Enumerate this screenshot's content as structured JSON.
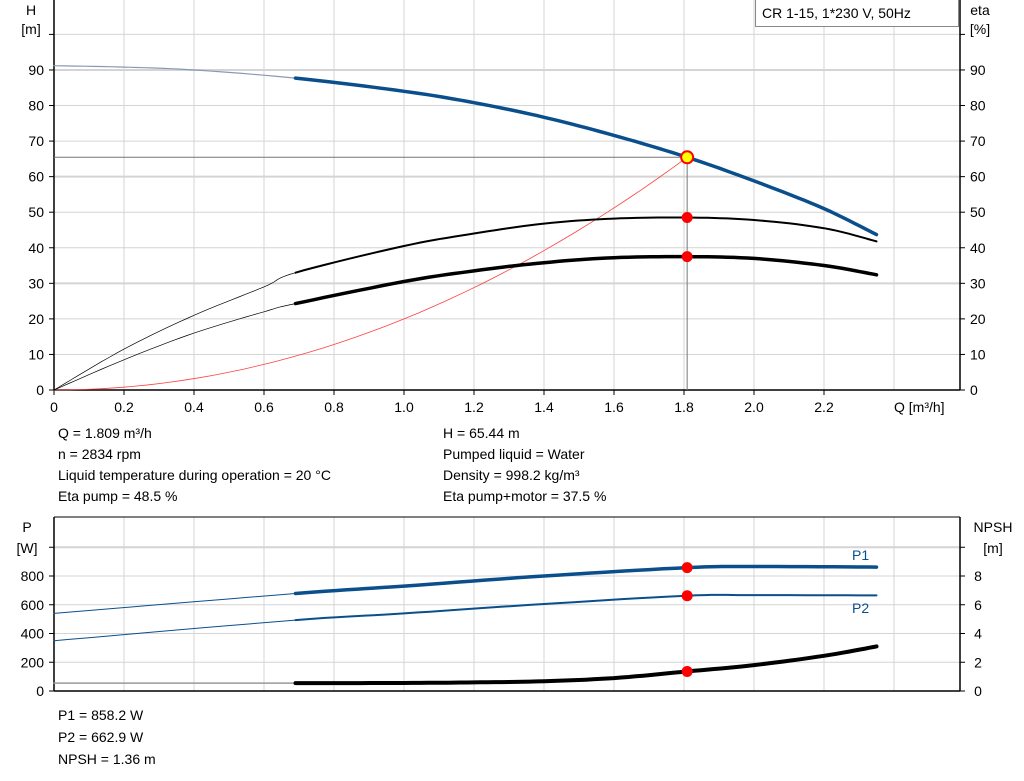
{
  "chart_data": [
    {
      "type": "line",
      "title": "CR 1-15, 1*230 V, 50Hz",
      "xlabel": "Q [m³/h]",
      "ylabel": [
        "H",
        "[m]"
      ],
      "y2label": [
        "eta",
        "[%]"
      ],
      "xlim": [
        0,
        2.6
      ],
      "ylim": [
        0,
        110
      ],
      "y2lim": [
        0,
        110
      ],
      "xticks": [
        "0",
        "0.2",
        "0.4",
        "0.6",
        "0.8",
        "1.0",
        "1.2",
        "1.4",
        "1.6",
        "1.8",
        "2.0",
        "2.2"
      ],
      "yticks": [
        "0",
        "10",
        "20",
        "30",
        "40",
        "50",
        "60",
        "70",
        "80",
        "90"
      ],
      "grid": true,
      "duty_range_start_q": 0.69,
      "operating_point": {
        "q": 1.809,
        "h": 65.44
      },
      "series": [
        {
          "id": "head",
          "color": "#0a4f8c",
          "x": [
            0,
            0.2,
            0.4,
            0.69,
            1.0,
            1.2,
            1.4,
            1.6,
            1.809,
            2.0,
            2.2,
            2.35
          ],
          "y": [
            91.2,
            90.8,
            90.0,
            87.7,
            84.0,
            80.8,
            76.7,
            71.6,
            65.44,
            58.8,
            51.0,
            43.7
          ]
        },
        {
          "id": "eta-pump",
          "color": "#000000",
          "x": [
            0,
            0.2,
            0.4,
            0.6,
            0.69,
            1.0,
            1.2,
            1.4,
            1.6,
            1.809,
            2.0,
            2.2,
            2.35
          ],
          "y": [
            0,
            11.5,
            21,
            29,
            33,
            40.5,
            44,
            46.8,
            48.2,
            48.5,
            47.8,
            45.5,
            41.8
          ]
        },
        {
          "id": "eta-pump-motor",
          "color": "#000000",
          "x": [
            0,
            0.2,
            0.4,
            0.6,
            0.69,
            1.0,
            1.2,
            1.4,
            1.6,
            1.809,
            2.0,
            2.2,
            2.35
          ],
          "y": [
            0,
            8.5,
            16,
            22,
            24.3,
            30.5,
            33.5,
            35.8,
            37.2,
            37.5,
            37,
            35,
            32.4
          ]
        },
        {
          "id": "system-curve",
          "color": "#ff4040",
          "formula": "H = 20·Q²"
        }
      ],
      "markers": [
        {
          "series": "head",
          "x": 1.809,
          "y": 65.44,
          "color": "#ffff00"
        },
        {
          "series": "eta-pump",
          "x": 1.809,
          "y": 48.5,
          "color": "#ff0000"
        },
        {
          "series": "eta-pump-motor",
          "x": 1.809,
          "y": 37.5,
          "color": "#ff0000"
        }
      ]
    },
    {
      "type": "line",
      "ylabel": [
        "P",
        "[W]"
      ],
      "y2label": [
        "NPSH",
        "[m]"
      ],
      "xlim": [
        0,
        2.6
      ],
      "ylim": [
        0,
        1200
      ],
      "y2lim": [
        0,
        12
      ],
      "yticks": [
        "0",
        "200",
        "400",
        "600",
        "800"
      ],
      "y2ticks": [
        "0",
        "2",
        "4",
        "6",
        "8"
      ],
      "grid": true,
      "series": [
        {
          "id": "p1",
          "name": "P1",
          "color": "#0a4f8c",
          "axis": "left",
          "x": [
            0,
            0.69,
            1.0,
            1.4,
            1.809,
            2.0,
            2.35
          ],
          "y": [
            540,
            678,
            730,
            800,
            858.2,
            866,
            862
          ]
        },
        {
          "id": "p2",
          "name": "P2",
          "color": "#0a4f8c",
          "axis": "left",
          "x": [
            0,
            0.69,
            1.0,
            1.4,
            1.809,
            2.0,
            2.35
          ],
          "y": [
            350,
            493,
            540,
            605,
            662.9,
            667,
            665
          ]
        },
        {
          "id": "npsh",
          "color": "#000000",
          "axis": "right",
          "x": [
            0,
            0.69,
            1.0,
            1.2,
            1.4,
            1.6,
            1.809,
            2.0,
            2.2,
            2.35
          ],
          "y": [
            0.55,
            0.55,
            0.56,
            0.6,
            0.68,
            0.9,
            1.36,
            1.8,
            2.45,
            3.1
          ]
        }
      ],
      "markers": [
        {
          "series": "p1",
          "x": 1.809,
          "y": 858.2
        },
        {
          "series": "p2",
          "x": 1.809,
          "y": 662.9
        },
        {
          "series": "npsh",
          "x": 1.809,
          "y": 1.36
        }
      ]
    }
  ],
  "info_top": {
    "left": [
      "Q = 1.809 m³/h",
      "n = 2834 rpm",
      "Liquid temperature during operation = 20 °C",
      "Eta pump = 48.5 %"
    ],
    "right": [
      "H = 65.44 m",
      "Pumped liquid = Water",
      "Density = 998.2 kg/m³",
      "Eta pump+motor = 37.5 %"
    ]
  },
  "info_bottom": [
    "P1 = 858.2 W",
    "P2 = 662.9 W",
    "NPSH = 1.36 m"
  ]
}
